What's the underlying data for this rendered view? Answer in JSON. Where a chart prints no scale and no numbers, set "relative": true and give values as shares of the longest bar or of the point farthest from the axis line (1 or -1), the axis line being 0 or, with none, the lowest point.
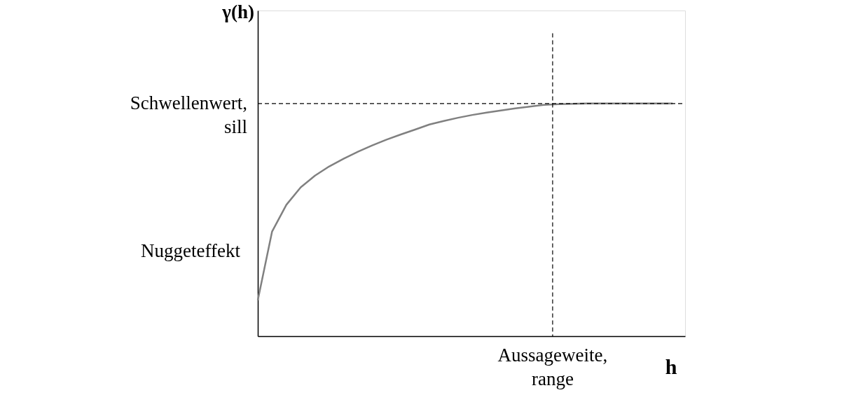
{
  "chart_data": {
    "type": "line",
    "relative": true,
    "xlabel": "h",
    "ylabel": "γ(h)",
    "categories": [
      null,
      null,
      null,
      null,
      null,
      null,
      null,
      null,
      null,
      null,
      null,
      null,
      null,
      null,
      null,
      null,
      null,
      null,
      null,
      null,
      null,
      null,
      null,
      null,
      null,
      null,
      null,
      null,
      null,
      null
    ],
    "series": [
      {
        "color": "#808080",
        "values": [
          0.154,
          0.45,
          0.565,
          0.64,
          0.69,
          0.73,
          0.763,
          0.793,
          0.82,
          0.845,
          0.867,
          0.888,
          0.91,
          0.925,
          0.939,
          0.951,
          0.961,
          0.97,
          0.979,
          0.987,
          0.994,
          0.997,
          0.999,
          1.0,
          1.0,
          1.0,
          1.0,
          1.0,
          1.0,
          1.0
        ]
      }
    ],
    "ref_lines": [
      {
        "axis": "y",
        "value": 1.0,
        "label": "Schwellenwert, sill",
        "color": "#000000",
        "line_style": "dashed"
      }
    ],
    "annotations": [
      "Nuggeteffekt",
      "Aussageweite, range"
    ],
    "grid": false,
    "tick_labels": false,
    "marker": "none",
    "line_style": "solid"
  }
}
